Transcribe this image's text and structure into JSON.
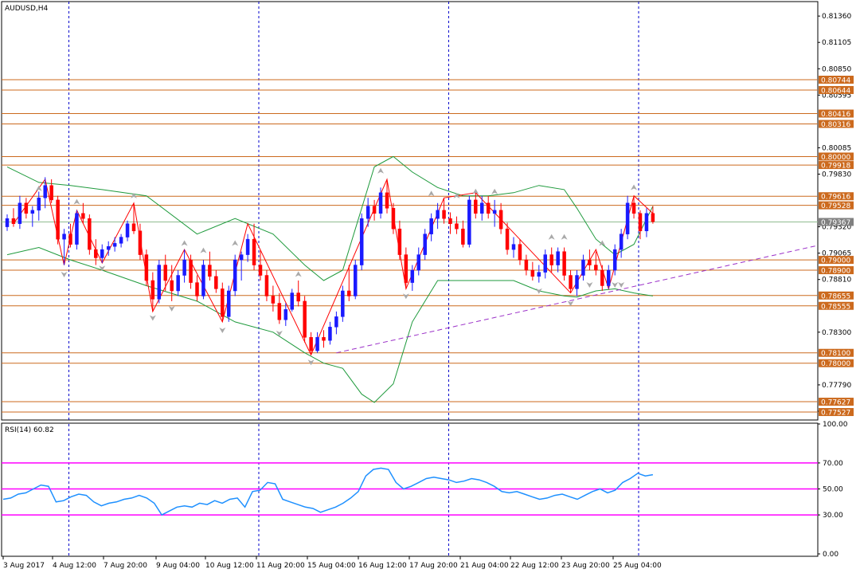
{
  "chart_data": [
    {
      "type": "candlestick",
      "title": "AUDUSD,H4",
      "y_ticks": [
        "0.81360",
        "0.81105",
        "0.80850",
        "0.80595",
        "0.80085",
        "0.79830",
        "0.79320",
        "0.79065",
        "0.78810",
        "0.78300",
        "0.77790",
        "0.77535"
      ],
      "ylim": [
        0.7745,
        0.815
      ],
      "level_labels": [
        "0.80744",
        "0.80644",
        "0.80416",
        "0.80316",
        "0.80000",
        "0.79918",
        "0.79616",
        "0.79528",
        "0.79367",
        "0.79000",
        "0.78900",
        "0.78655",
        "0.78555",
        "0.78100",
        "0.78000",
        "0.77627",
        "0.77527"
      ],
      "levels": [
        0.80744,
        0.80644,
        0.80416,
        0.80316,
        0.8,
        0.79918,
        0.79616,
        0.79528,
        0.79,
        0.789,
        0.78655,
        0.78555,
        0.781,
        0.78,
        0.77627,
        0.77527
      ],
      "current_price_label": "0.79367",
      "current_price": 0.79367,
      "trendline": {
        "from": {
          "bar": 52,
          "price": 0.781
        },
        "to": {
          "bar": 131,
          "price": 0.7918
        }
      },
      "candles": [
        [
          0.7932,
          0.7944,
          0.7928,
          0.794
        ],
        [
          0.794,
          0.795,
          0.7932,
          0.7935
        ],
        [
          0.7935,
          0.7962,
          0.793,
          0.7955
        ],
        [
          0.7955,
          0.796,
          0.794,
          0.7945
        ],
        [
          0.7945,
          0.7952,
          0.7932,
          0.7948
        ],
        [
          0.7948,
          0.7966,
          0.7938,
          0.796
        ],
        [
          0.796,
          0.798,
          0.795,
          0.7972
        ],
        [
          0.7972,
          0.7978,
          0.7955,
          0.7958
        ],
        [
          0.7958,
          0.7962,
          0.7915,
          0.792
        ],
        [
          0.792,
          0.793,
          0.7895,
          0.7925
        ],
        [
          0.7925,
          0.7935,
          0.7912,
          0.7915
        ],
        [
          0.7915,
          0.7948,
          0.791,
          0.7945
        ],
        [
          0.7945,
          0.7955,
          0.7935,
          0.794
        ],
        [
          0.794,
          0.7944,
          0.7905,
          0.791
        ],
        [
          0.791,
          0.792,
          0.7895,
          0.7902
        ],
        [
          0.7902,
          0.7915,
          0.7897,
          0.791
        ],
        [
          0.791,
          0.7918,
          0.7904,
          0.7913
        ],
        [
          0.7913,
          0.7922,
          0.7908,
          0.7916
        ],
        [
          0.7916,
          0.7925,
          0.7912,
          0.7922
        ],
        [
          0.7922,
          0.7938,
          0.7918,
          0.7935
        ],
        [
          0.7935,
          0.7955,
          0.7925,
          0.7928
        ],
        [
          0.7928,
          0.7935,
          0.79,
          0.7905
        ],
        [
          0.7905,
          0.791,
          0.7875,
          0.788
        ],
        [
          0.788,
          0.7888,
          0.785,
          0.7862
        ],
        [
          0.7862,
          0.79,
          0.7858,
          0.7895
        ],
        [
          0.7895,
          0.7905,
          0.787,
          0.788
        ],
        [
          0.788,
          0.7895,
          0.786,
          0.787
        ],
        [
          0.787,
          0.789,
          0.7865,
          0.7885
        ],
        [
          0.7885,
          0.791,
          0.7878,
          0.79
        ],
        [
          0.79,
          0.7905,
          0.7872,
          0.7878
        ],
        [
          0.7878,
          0.7885,
          0.786,
          0.7865
        ],
        [
          0.7865,
          0.79,
          0.7862,
          0.7895
        ],
        [
          0.7895,
          0.7908,
          0.788,
          0.7884
        ],
        [
          0.7884,
          0.789,
          0.7868,
          0.7872
        ],
        [
          0.7872,
          0.7878,
          0.784,
          0.7845
        ],
        [
          0.7845,
          0.7875,
          0.784,
          0.787
        ],
        [
          0.787,
          0.7905,
          0.7865,
          0.79
        ],
        [
          0.79,
          0.7908,
          0.788,
          0.7905
        ],
        [
          0.7905,
          0.7925,
          0.7898,
          0.792
        ],
        [
          0.792,
          0.7935,
          0.789,
          0.7895
        ],
        [
          0.7895,
          0.791,
          0.788,
          0.7885
        ],
        [
          0.7885,
          0.789,
          0.786,
          0.7865
        ],
        [
          0.7865,
          0.7875,
          0.785,
          0.7858
        ],
        [
          0.7858,
          0.7868,
          0.7838,
          0.7842
        ],
        [
          0.7842,
          0.7858,
          0.7836,
          0.7852
        ],
        [
          0.7852,
          0.7872,
          0.785,
          0.7868
        ],
        [
          0.7868,
          0.788,
          0.7855,
          0.786
        ],
        [
          0.786,
          0.7865,
          0.782,
          0.7825
        ],
        [
          0.7825,
          0.783,
          0.7808,
          0.7812
        ],
        [
          0.7812,
          0.783,
          0.781,
          0.7825
        ],
        [
          0.7825,
          0.7832,
          0.7815,
          0.7822
        ],
        [
          0.7822,
          0.784,
          0.7818,
          0.7835
        ],
        [
          0.7835,
          0.785,
          0.7828,
          0.7845
        ],
        [
          0.7845,
          0.7875,
          0.784,
          0.787
        ],
        [
          0.787,
          0.7895,
          0.786,
          0.7865
        ],
        [
          0.7865,
          0.79,
          0.7862,
          0.7895
        ],
        [
          0.7895,
          0.7945,
          0.789,
          0.794
        ],
        [
          0.794,
          0.796,
          0.7932,
          0.7952
        ],
        [
          0.7952,
          0.7958,
          0.7938,
          0.7945
        ],
        [
          0.7945,
          0.797,
          0.794,
          0.7965
        ],
        [
          0.7965,
          0.7978,
          0.7945,
          0.795
        ],
        [
          0.795,
          0.7955,
          0.7925,
          0.793
        ],
        [
          0.793,
          0.7938,
          0.79,
          0.7905
        ],
        [
          0.7905,
          0.7912,
          0.7872,
          0.7878
        ],
        [
          0.7878,
          0.7895,
          0.787,
          0.789
        ],
        [
          0.789,
          0.7912,
          0.7885,
          0.7905
        ],
        [
          0.7905,
          0.793,
          0.79,
          0.7925
        ],
        [
          0.7925,
          0.7945,
          0.7918,
          0.794
        ],
        [
          0.794,
          0.7955,
          0.793,
          0.7948
        ],
        [
          0.7948,
          0.796,
          0.7935,
          0.794
        ],
        [
          0.794,
          0.7946,
          0.7925,
          0.7935
        ],
        [
          0.7935,
          0.7942,
          0.7925,
          0.793
        ],
        [
          0.793,
          0.7938,
          0.7912,
          0.7915
        ],
        [
          0.7915,
          0.7962,
          0.7912,
          0.7958
        ],
        [
          0.7958,
          0.7965,
          0.794,
          0.7945
        ],
        [
          0.7945,
          0.7962,
          0.7938,
          0.7955
        ],
        [
          0.7955,
          0.7962,
          0.794,
          0.7945
        ],
        [
          0.7945,
          0.7958,
          0.7932,
          0.7948
        ],
        [
          0.7948,
          0.7955,
          0.7925,
          0.793
        ],
        [
          0.793,
          0.7936,
          0.7905,
          0.791
        ],
        [
          0.791,
          0.7922,
          0.7902,
          0.7915
        ],
        [
          0.7915,
          0.792,
          0.7895,
          0.79
        ],
        [
          0.79,
          0.7905,
          0.7885,
          0.789
        ],
        [
          0.789,
          0.7898,
          0.788,
          0.7884
        ],
        [
          0.7884,
          0.7895,
          0.7878,
          0.7888
        ],
        [
          0.7888,
          0.791,
          0.7882,
          0.7905
        ],
        [
          0.7905,
          0.7912,
          0.7888,
          0.7895
        ],
        [
          0.7895,
          0.7912,
          0.7888,
          0.7908
        ],
        [
          0.7908,
          0.7912,
          0.788,
          0.7885
        ],
        [
          0.7885,
          0.789,
          0.7868,
          0.7872
        ],
        [
          0.7872,
          0.789,
          0.7865,
          0.7885
        ],
        [
          0.7885,
          0.7905,
          0.788,
          0.79
        ],
        [
          0.79,
          0.791,
          0.789,
          0.7895
        ],
        [
          0.7895,
          0.7908,
          0.7885,
          0.789
        ],
        [
          0.789,
          0.7895,
          0.787,
          0.7875
        ],
        [
          0.7875,
          0.7895,
          0.7872,
          0.789
        ],
        [
          0.789,
          0.7915,
          0.7885,
          0.791
        ],
        [
          0.791,
          0.793,
          0.7902,
          0.7925
        ],
        [
          0.7925,
          0.7962,
          0.792,
          0.7955
        ],
        [
          0.7955,
          0.7962,
          0.794,
          0.7945
        ],
        [
          0.7945,
          0.7948,
          0.792,
          0.7928
        ],
        [
          0.7928,
          0.795,
          0.7922,
          0.7945
        ],
        [
          0.7945,
          0.7952,
          0.7935,
          0.7937
        ]
      ],
      "upper_band": [
        [
          0,
          0.799
        ],
        [
          5,
          0.7975
        ],
        [
          10,
          0.7972
        ],
        [
          15,
          0.7968
        ],
        [
          22,
          0.7962
        ],
        [
          30,
          0.7925
        ],
        [
          36,
          0.794
        ],
        [
          42,
          0.7925
        ],
        [
          47,
          0.7895
        ],
        [
          50,
          0.788
        ],
        [
          53,
          0.789
        ],
        [
          56,
          0.795
        ],
        [
          58,
          0.799
        ],
        [
          61,
          0.8
        ],
        [
          64,
          0.7985
        ],
        [
          68,
          0.797
        ],
        [
          72,
          0.7962
        ],
        [
          76,
          0.7962
        ],
        [
          80,
          0.7965
        ],
        [
          84,
          0.7972
        ],
        [
          88,
          0.7968
        ],
        [
          90,
          0.795
        ],
        [
          93,
          0.792
        ],
        [
          96,
          0.7905
        ],
        [
          99,
          0.7915
        ],
        [
          102,
          0.7952
        ]
      ],
      "lower_band": [
        [
          0,
          0.7905
        ],
        [
          5,
          0.7912
        ],
        [
          10,
          0.79
        ],
        [
          15,
          0.789
        ],
        [
          22,
          0.7875
        ],
        [
          30,
          0.786
        ],
        [
          36,
          0.784
        ],
        [
          42,
          0.783
        ],
        [
          47,
          0.781
        ],
        [
          50,
          0.78
        ],
        [
          53,
          0.7795
        ],
        [
          56,
          0.777
        ],
        [
          58,
          0.7762
        ],
        [
          61,
          0.778
        ],
        [
          64,
          0.784
        ],
        [
          68,
          0.788
        ],
        [
          72,
          0.788
        ],
        [
          76,
          0.788
        ],
        [
          80,
          0.788
        ],
        [
          84,
          0.787
        ],
        [
          88,
          0.7865
        ],
        [
          90,
          0.7864
        ],
        [
          93,
          0.787
        ],
        [
          96,
          0.7872
        ],
        [
          99,
          0.7868
        ],
        [
          102,
          0.7865
        ]
      ],
      "fractals_up": [
        [
          5,
          0.7965
        ],
        [
          11,
          0.7952
        ],
        [
          20,
          0.7958
        ],
        [
          28,
          0.7912
        ],
        [
          31,
          0.7905
        ],
        [
          36,
          0.7912
        ],
        [
          46,
          0.7882
        ],
        [
          59,
          0.7982
        ],
        [
          67,
          0.796
        ],
        [
          71,
          0.7958
        ],
        [
          74,
          0.7962
        ],
        [
          77,
          0.7962
        ],
        [
          86,
          0.7918
        ],
        [
          88,
          0.7918
        ],
        [
          94,
          0.7912
        ],
        [
          99,
          0.7966
        ]
      ],
      "fractals_down": [
        [
          9,
          0.789
        ],
        [
          15,
          0.7896
        ],
        [
          23,
          0.7848
        ],
        [
          26,
          0.7857
        ],
        [
          34,
          0.7836
        ],
        [
          43,
          0.7833
        ],
        [
          48,
          0.7805
        ],
        [
          63,
          0.7869
        ],
        [
          84,
          0.7874
        ],
        [
          89,
          0.7862
        ],
        [
          92,
          0.788
        ],
        [
          96,
          0.788
        ],
        [
          97,
          0.788
        ]
      ],
      "zigzag": [
        [
          1,
          0.7935
        ],
        [
          6,
          0.7978
        ],
        [
          9,
          0.7895
        ],
        [
          11,
          0.7948
        ],
        [
          15,
          0.7897
        ],
        [
          20,
          0.7955
        ],
        [
          23,
          0.785
        ],
        [
          28,
          0.791
        ],
        [
          34,
          0.784
        ],
        [
          38,
          0.7935
        ],
        [
          48,
          0.7808
        ],
        [
          60,
          0.7978
        ],
        [
          63,
          0.7872
        ],
        [
          69,
          0.796
        ],
        [
          74,
          0.7965
        ],
        [
          89,
          0.7868
        ],
        [
          93,
          0.791
        ],
        [
          95,
          0.7872
        ],
        [
          99,
          0.7962
        ],
        [
          102,
          0.7945
        ]
      ]
    },
    {
      "type": "line",
      "title": "RSI(14) 60.82",
      "y_ticks": [
        "100.00",
        "70.00",
        "50.00",
        "30.00",
        "0.00"
      ],
      "ylim": [
        0,
        100
      ],
      "levels": [
        70,
        50,
        30
      ],
      "values": [
        42,
        43,
        46,
        47,
        50,
        53,
        52,
        40,
        41,
        44,
        46,
        45,
        40,
        37,
        39,
        40,
        42,
        43,
        45,
        43,
        39,
        30,
        33,
        36,
        37,
        36,
        39,
        38,
        41,
        39,
        42,
        43,
        36,
        48,
        49,
        55,
        54,
        42,
        40,
        38,
        36,
        35,
        32,
        34,
        36,
        39,
        43,
        48,
        60,
        65,
        66,
        65,
        55,
        50,
        52,
        55,
        58,
        59,
        58,
        57,
        55,
        56,
        58,
        57,
        55,
        52,
        48,
        47,
        48,
        46,
        44,
        42,
        43,
        45,
        46,
        44,
        42,
        45,
        48,
        50,
        47,
        49,
        55,
        58,
        62,
        60,
        61
      ]
    },
    {
      "type": "time_axis",
      "labels": [
        "3 Aug 2017",
        "4 Aug 12:00",
        "7 Aug 20:00",
        "9 Aug 04:00",
        "10 Aug 12:00",
        "11 Aug 20:00",
        "15 Aug 04:00",
        "16 Aug 12:00",
        "17 Aug 20:00",
        "21 Aug 04:00",
        "22 Aug 12:00",
        "23 Aug 20:00",
        "25 Aug 04:00"
      ]
    }
  ],
  "colors": {
    "bull": "#1a1aff",
    "bear": "#ff0000",
    "levels": "#cc6a1e",
    "bands": "#1e9a3c",
    "zigzag": "#ff0000",
    "fractals": "#a9a9a9",
    "trendline": "#9b30c8",
    "rsi_line": "#1e90ff",
    "rsi_levels": "#ff00ff",
    "separators": "#0000cc"
  }
}
